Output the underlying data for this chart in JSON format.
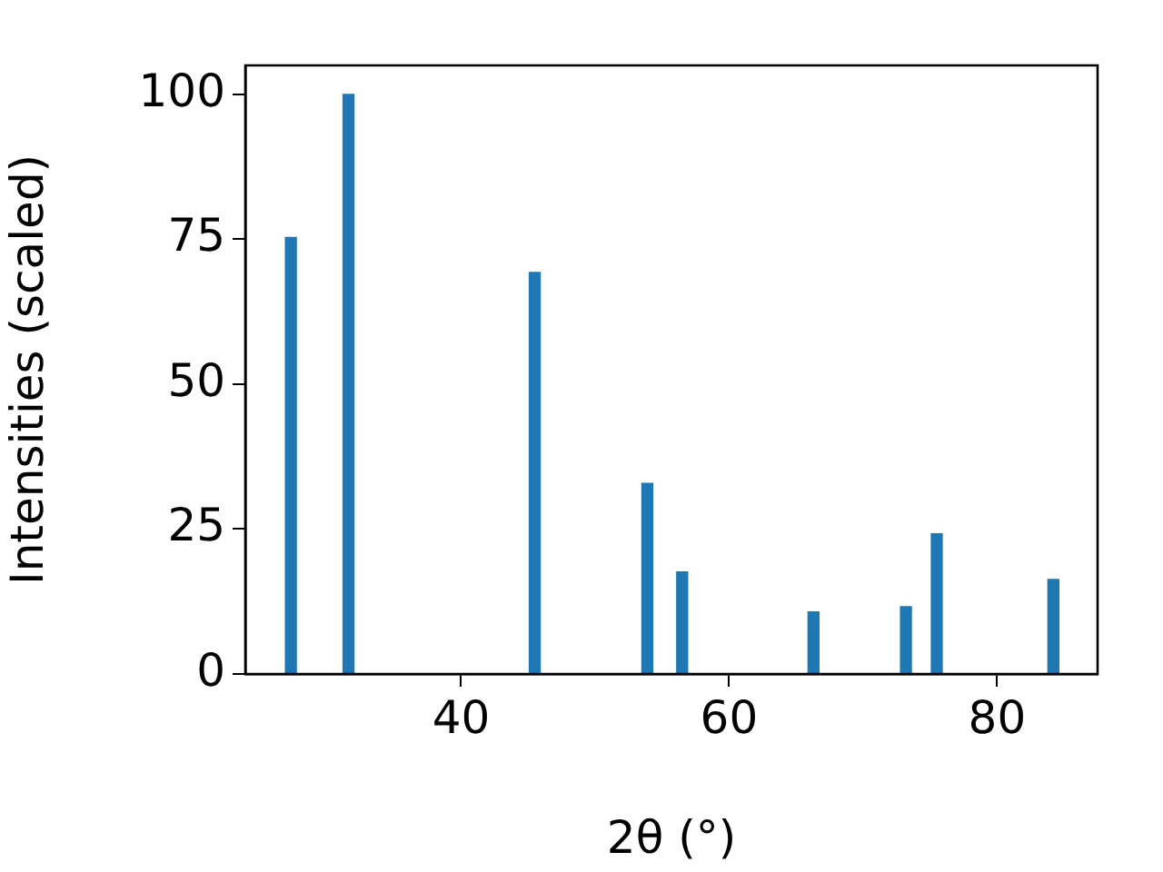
{
  "chart_data": {
    "type": "bar",
    "xlabel": "2θ (°)",
    "ylabel": "Intensities (scaled)",
    "x": [
      27.3,
      31.6,
      45.5,
      53.9,
      56.5,
      66.3,
      73.2,
      75.5,
      84.2
    ],
    "values": [
      75.3,
      100,
      69.3,
      32.9,
      17.6,
      10.7,
      11.6,
      24.2,
      16.3
    ],
    "color": "#1f77b4",
    "xlim": [
      23.9,
      87.5
    ],
    "xticks": [
      40,
      60,
      80
    ],
    "ylim": [
      0,
      105
    ],
    "yticks": [
      0,
      25,
      50,
      75,
      100
    ]
  }
}
